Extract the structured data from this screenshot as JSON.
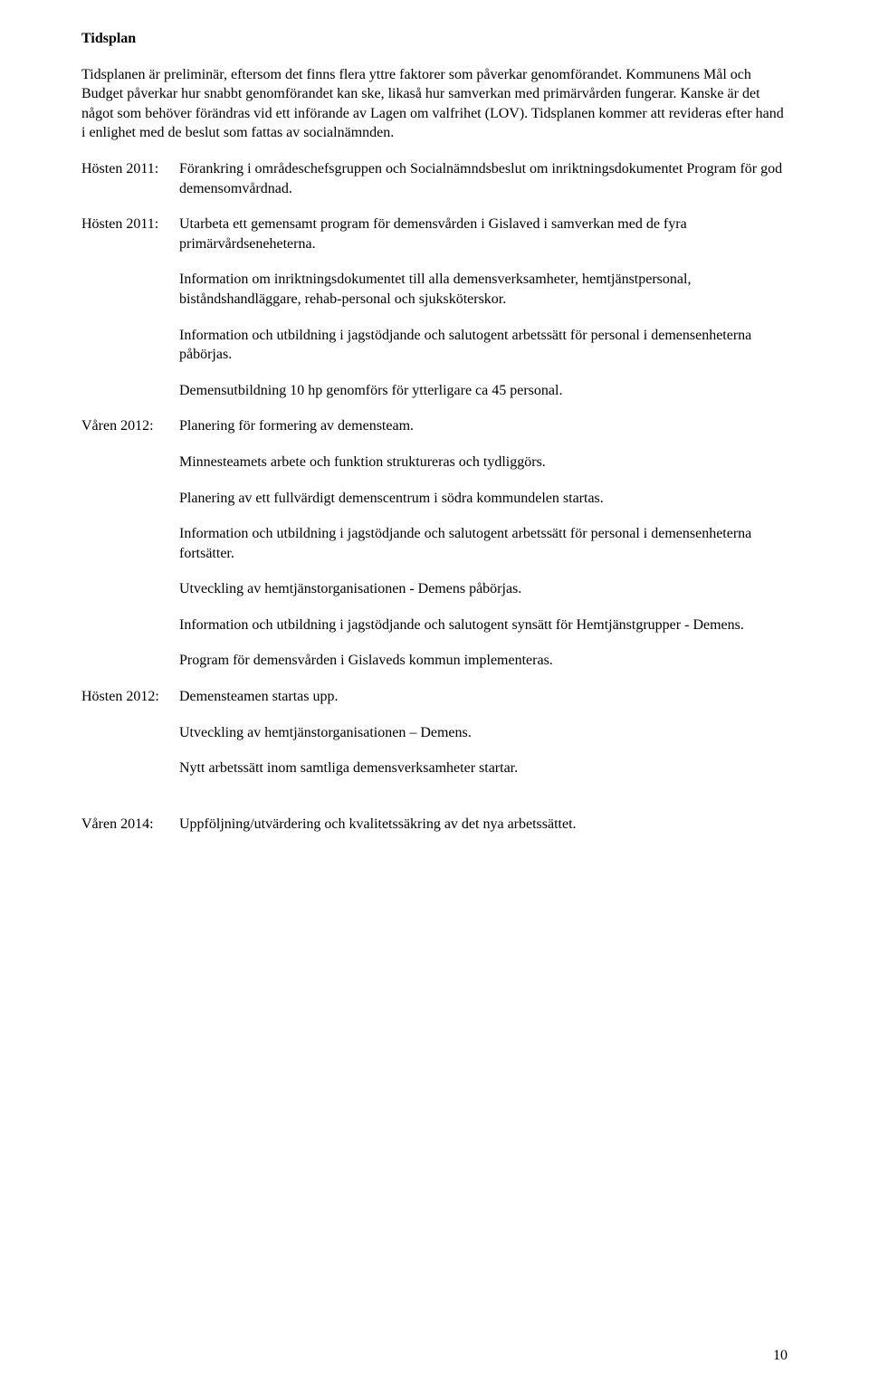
{
  "heading": "Tidsplan",
  "intro": "Tidsplanen är preliminär, eftersom det finns flera yttre faktorer som påverkar genomförandet. Kommunens Mål och Budget påverkar hur snabbt genomförandet kan ske, likaså hur samverkan med primärvården fungerar. Kanske är det något som behöver förändras vid ett införande av Lagen om valfrihet (LOV). Tidsplanen kommer att revideras efter hand i enlighet med de beslut som fattas av socialnämnden.",
  "sections": [
    {
      "label": "Hösten 2011:",
      "items": [
        "Förankring i områdeschefsgruppen och Socialnämndsbeslut om inriktningsdokumentet Program för god demensomvårdnad."
      ]
    },
    {
      "label": "Hösten 2011:",
      "items": [
        "Utarbeta ett gemensamt program för demensvården i Gislaved i samverkan med de fyra primärvårdseneheterna.",
        "Information om inriktningsdokumentet till alla demensverksamheter, hemtjänstpersonal, biståndshandläggare, rehab-personal och sjuksköterskor.",
        "Information och utbildning i jagstödjande och salutogent arbetssätt för personal i demensenheterna påbörjas.",
        "Demensutbildning 10 hp genomförs för ytterligare ca 45 personal."
      ]
    },
    {
      "label": "Våren 2012:",
      "items": [
        "Planering för formering av demensteam.",
        "Minnesteamets arbete och funktion struktureras och tydliggörs.",
        "Planering av ett fullvärdigt demenscentrum i södra kommundelen startas.",
        "Information och utbildning i jagstödjande och salutogent arbetssätt för personal i demensenheterna fortsätter.",
        "Utveckling av hemtjänstorganisationen - Demens påbörjas.",
        "Information och utbildning i jagstödjande och salutogent synsätt för Hemtjänstgrupper - Demens.",
        "Program för demensvården i Gislaveds kommun implementeras."
      ]
    },
    {
      "label": "Hösten 2012:",
      "items": [
        "Demensteamen startas upp.",
        "Utveckling av hemtjänstorganisationen – Demens.",
        "Nytt arbetssätt inom samtliga demensverksamheter startar."
      ]
    },
    {
      "label": "Våren 2014:",
      "items": [
        "Uppföljning/utvärdering och kvalitetssäkring av det nya arbetssättet."
      ],
      "extraGapBefore": true
    }
  ],
  "pageNumber": "10"
}
